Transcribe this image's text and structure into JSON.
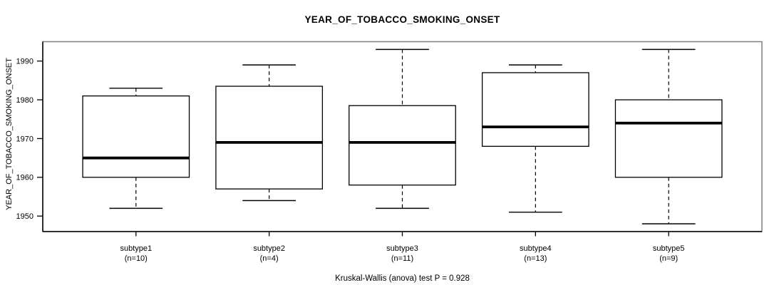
{
  "chart_data": {
    "type": "boxplot",
    "title": "YEAR_OF_TOBACCO_SMOKING_ONSET",
    "xlabel": "",
    "ylabel": "YEAR_OF_TOBACCO_SMOKING_ONSET",
    "ylim": [
      1946,
      1995
    ],
    "yticks": [
      1950,
      1960,
      1970,
      1980,
      1990
    ],
    "grid": false,
    "legend": "none",
    "categories": [
      "subtype1",
      "subtype2",
      "subtype3",
      "subtype4",
      "subtype5"
    ],
    "category_sublabels": [
      "(n=10)",
      "(n=4)",
      "(n=11)",
      "(n=13)",
      "(n=9)"
    ],
    "boxes": [
      {
        "label": "subtype1",
        "n": 10,
        "whisker_low": 1952,
        "q1": 1960,
        "median": 1965,
        "q3": 1981,
        "whisker_high": 1983
      },
      {
        "label": "subtype2",
        "n": 4,
        "whisker_low": 1954,
        "q1": 1957,
        "median": 1969,
        "q3": 1983.5,
        "whisker_high": 1989
      },
      {
        "label": "subtype3",
        "n": 11,
        "whisker_low": 1952,
        "q1": 1958,
        "median": 1969,
        "q3": 1978.5,
        "whisker_high": 1993
      },
      {
        "label": "subtype4",
        "n": 13,
        "whisker_low": 1951,
        "q1": 1968,
        "median": 1973,
        "q3": 1987,
        "whisker_high": 1989
      },
      {
        "label": "subtype5",
        "n": 9,
        "whisker_low": 1948,
        "q1": 1960,
        "median": 1974,
        "q3": 1980,
        "whisker_high": 1993
      }
    ],
    "annotation": "Kruskal-Wallis (anova) test P = 0.928",
    "colors": {
      "background": "#ffffff",
      "box_fill": "#ffffff",
      "line": "#000000",
      "frame": "#808080"
    }
  }
}
